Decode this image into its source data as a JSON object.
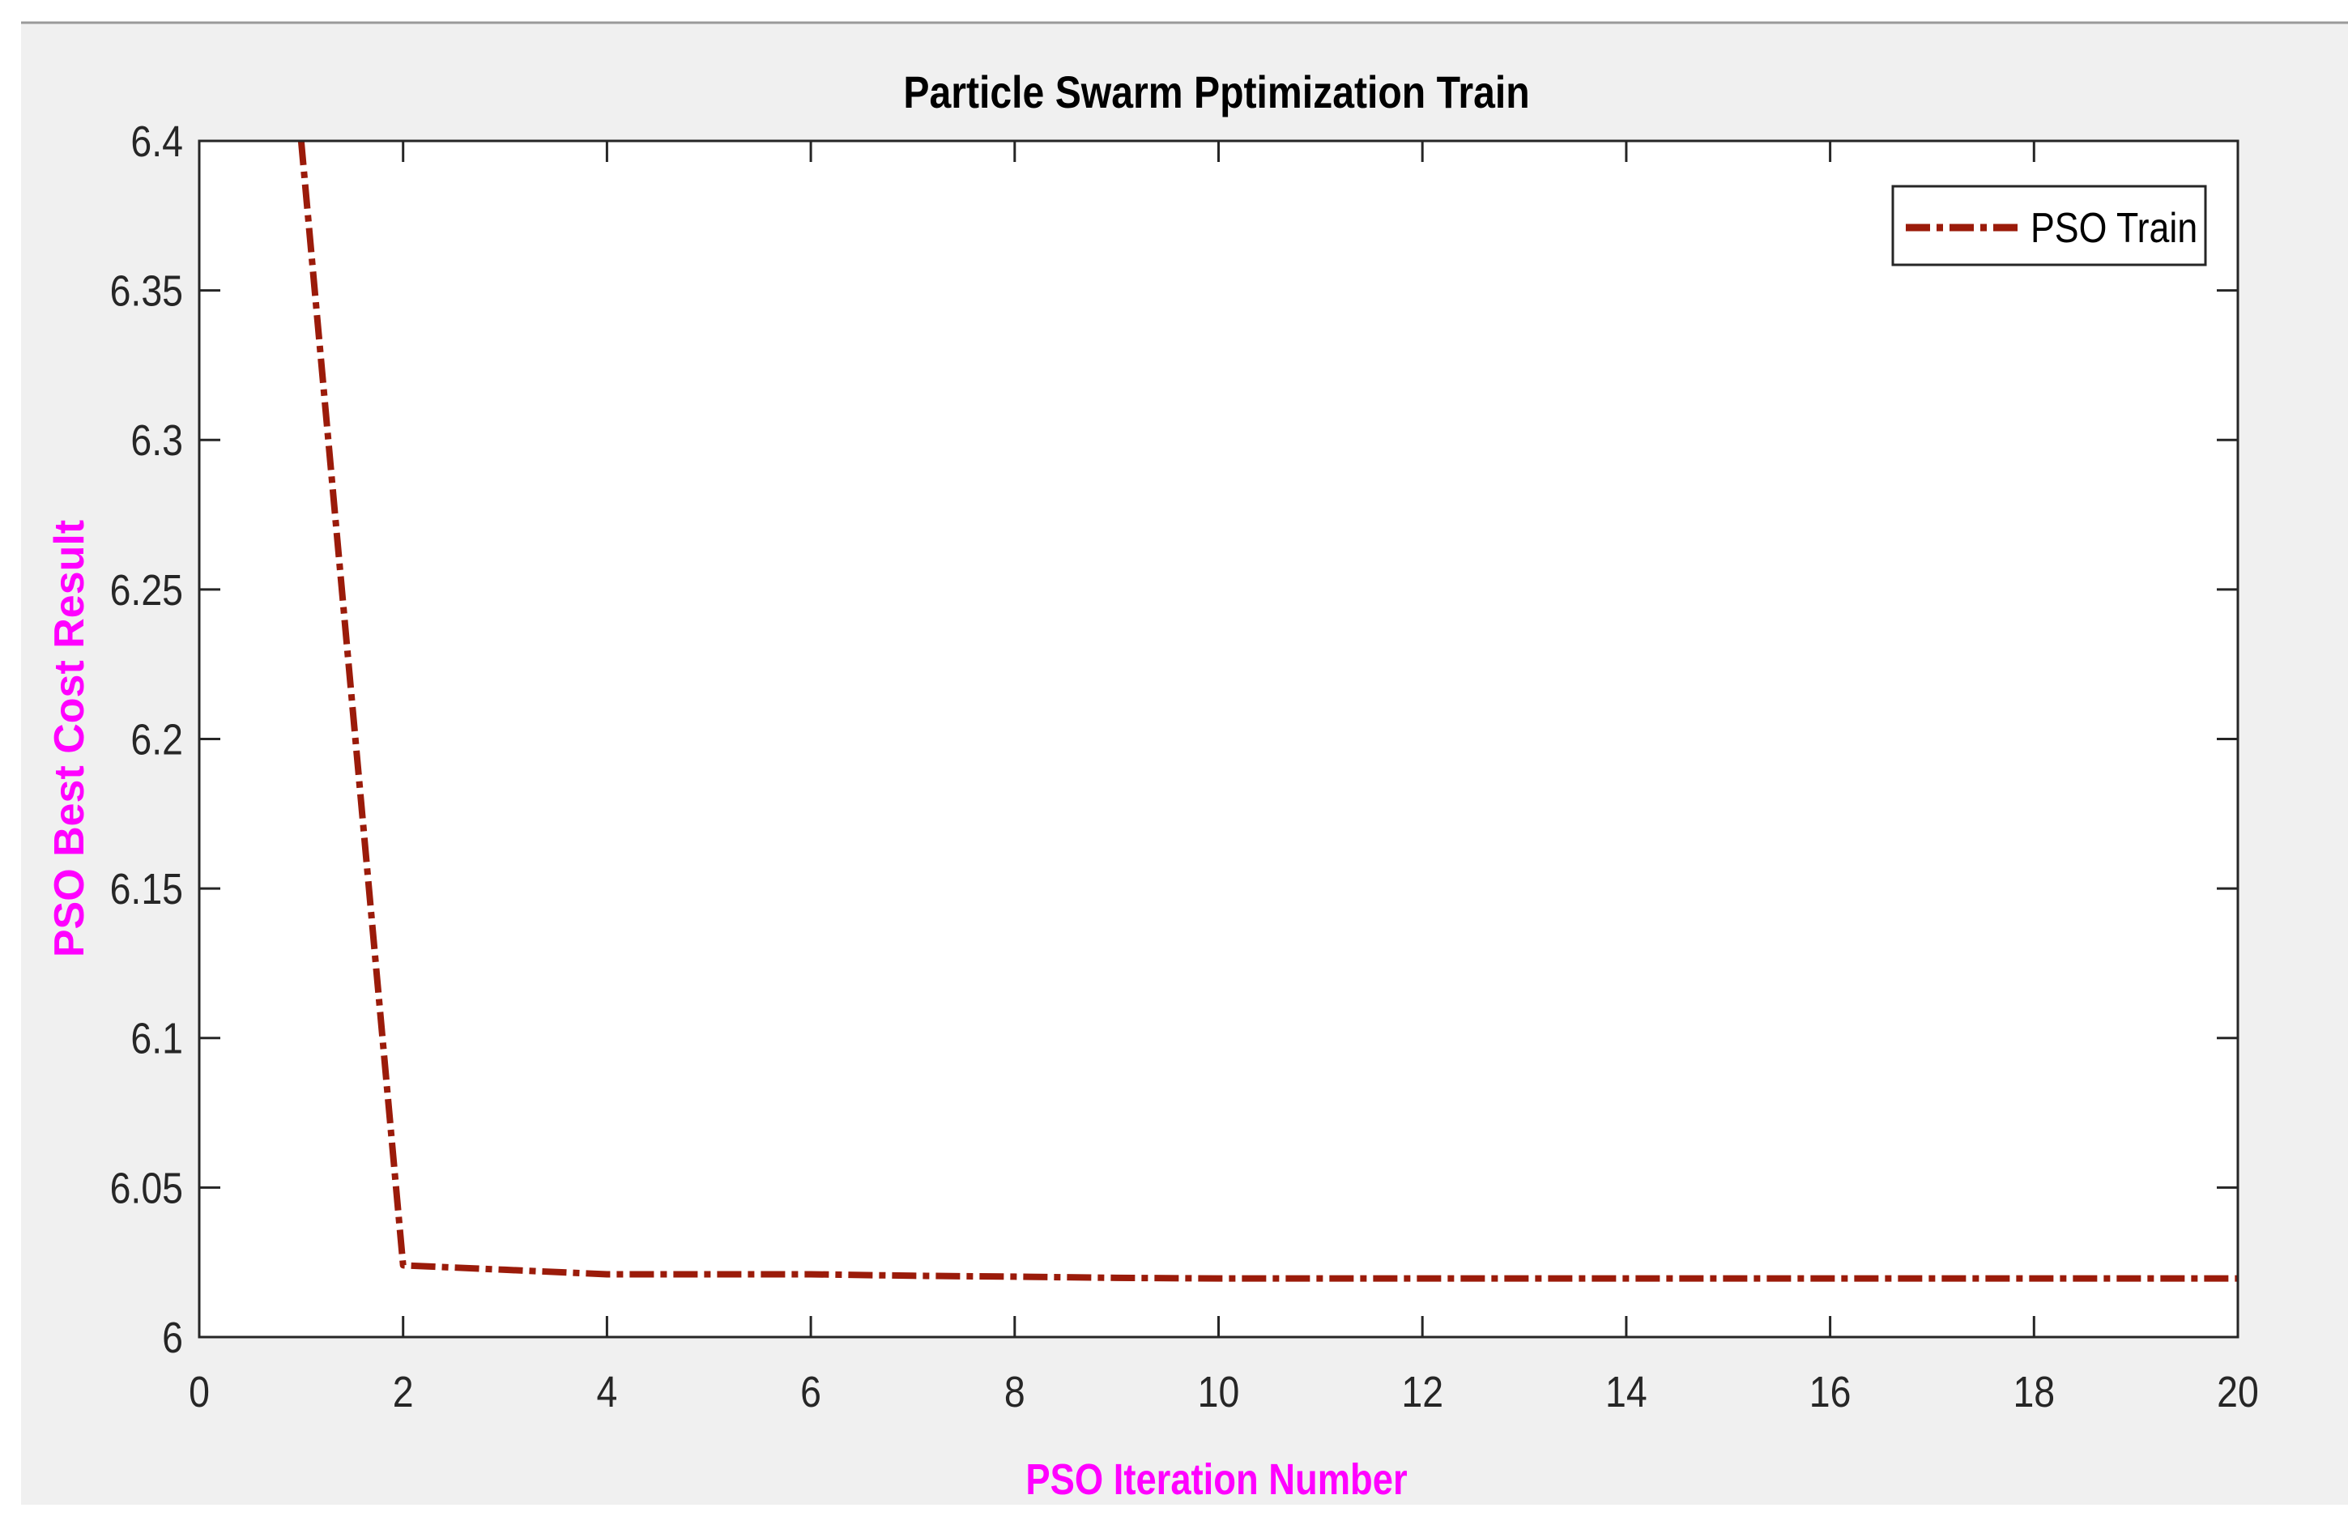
{
  "chart_data": {
    "type": "line",
    "title": "Particle Swarm Pptimization Train",
    "xlabel": "PSO Iteration Number",
    "ylabel": "PSO Best Cost Result",
    "xlim": [
      0,
      20
    ],
    "ylim": [
      6,
      6.4
    ],
    "xticks": [
      0,
      2,
      4,
      6,
      8,
      10,
      12,
      14,
      16,
      18,
      20
    ],
    "yticks": [
      6,
      6.05,
      6.1,
      6.15,
      6.2,
      6.25,
      6.3,
      6.35,
      6.4
    ],
    "xtick_labels": [
      "0",
      "2",
      "4",
      "6",
      "8",
      "10",
      "12",
      "14",
      "16",
      "18",
      "20"
    ],
    "ytick_labels": [
      "6",
      "6.05",
      "6.1",
      "6.15",
      "6.2",
      "6.25",
      "6.3",
      "6.35",
      "6.4"
    ],
    "grid": false,
    "legend_position": "top-right",
    "line_style": "dash-dot",
    "series": [
      {
        "name": "PSO Train",
        "color": "#9B1B0A",
        "x": [
          1,
          2,
          3,
          4,
          5,
          6,
          7,
          8,
          9,
          10,
          11,
          12,
          13,
          14,
          15,
          16,
          17,
          18,
          19,
          20
        ],
        "y": [
          6.4,
          6.024,
          6.0225,
          6.021,
          6.021,
          6.021,
          6.0205,
          6.0202,
          6.0198,
          6.0196,
          6.0196,
          6.0196,
          6.0196,
          6.0196,
          6.0196,
          6.0196,
          6.0196,
          6.0196,
          6.0196,
          6.0196
        ]
      }
    ],
    "colors": {
      "background": "#F0F0F0",
      "axes": "#262626",
      "axis_label": "#FF00FF",
      "title": "#000000"
    }
  }
}
